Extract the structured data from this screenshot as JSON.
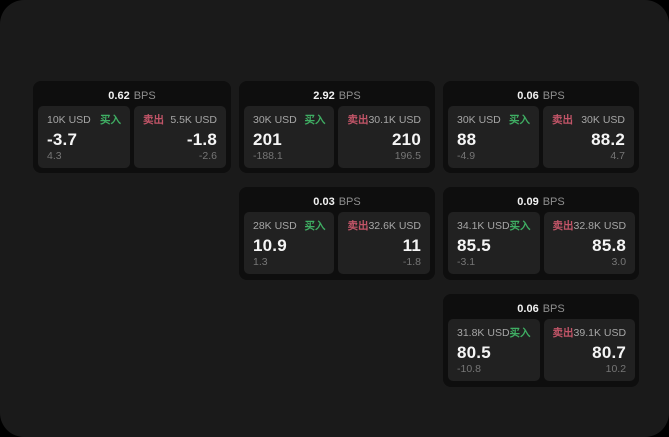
{
  "theme": {
    "buy_color": "#3fae63",
    "sell_color": "#c25568"
  },
  "labels": {
    "buy": "买入",
    "sell": "卖出",
    "bps_unit": "BPS"
  },
  "cards": [
    {
      "row": 1,
      "col": 1,
      "bps": "0.62",
      "buy": {
        "size": "10K USD",
        "value": "-3.7",
        "sub": "4.3"
      },
      "sell": {
        "size": "5.5K USD",
        "value": "-1.8",
        "sub": "-2.6"
      }
    },
    {
      "row": 1,
      "col": 2,
      "bps": "2.92",
      "buy": {
        "size": "30K USD",
        "value": "201",
        "sub": "-188.1"
      },
      "sell": {
        "size": "30.1K USD",
        "value": "210",
        "sub": "196.5"
      }
    },
    {
      "row": 1,
      "col": 3,
      "bps": "0.06",
      "buy": {
        "size": "30K USD",
        "value": "88",
        "sub": "-4.9"
      },
      "sell": {
        "size": "30K USD",
        "value": "88.2",
        "sub": "4.7"
      }
    },
    {
      "row": 2,
      "col": 2,
      "bps": "0.03",
      "buy": {
        "size": "28K USD",
        "value": "10.9",
        "sub": "1.3"
      },
      "sell": {
        "size": "32.6K USD",
        "value": "11",
        "sub": "-1.8"
      }
    },
    {
      "row": 2,
      "col": 3,
      "bps": "0.09",
      "buy": {
        "size": "34.1K USD",
        "value": "85.5",
        "sub": "-3.1"
      },
      "sell": {
        "size": "32.8K USD",
        "value": "85.8",
        "sub": "3.0"
      }
    },
    {
      "row": 3,
      "col": 3,
      "bps": "0.06",
      "buy": {
        "size": "31.8K USD",
        "value": "80.5",
        "sub": "-10.8"
      },
      "sell": {
        "size": "39.1K USD",
        "value": "80.7",
        "sub": "10.2"
      }
    }
  ]
}
